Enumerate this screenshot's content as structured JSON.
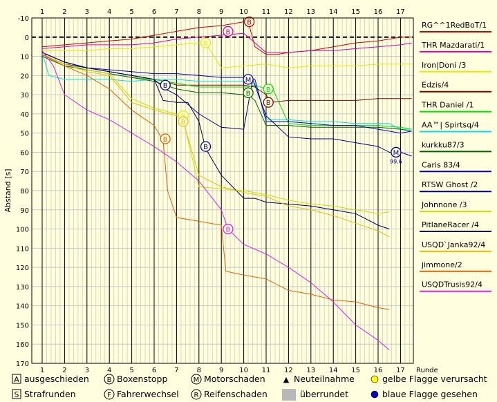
{
  "chart_data": {
    "type": "line",
    "ylabel": "Abstand [s]",
    "xlabel": "Runde",
    "x_ticks": [
      1,
      2,
      3,
      4,
      5,
      6,
      7,
      8,
      9,
      10,
      11,
      12,
      13,
      14,
      15,
      16,
      17
    ],
    "y_ticks": [
      -10,
      0,
      10,
      20,
      30,
      40,
      50,
      60,
      70,
      80,
      90,
      100,
      110,
      120,
      130,
      140,
      150,
      160,
      170
    ],
    "ylim": [
      -10,
      170
    ],
    "xlim": [
      1,
      18.2
    ],
    "grid": true,
    "series": [
      {
        "name": "RG^^1RedBoT/1",
        "color": "#d00000",
        "x": [
          1,
          2,
          3,
          4,
          5,
          6,
          7,
          8,
          9,
          10,
          10.2,
          10.5,
          11,
          11.5,
          12,
          13,
          14,
          15,
          16,
          16.5,
          17,
          17.5
        ],
        "y": [
          5,
          4,
          3,
          2,
          1,
          -1,
          -3,
          -5,
          -6,
          -8,
          -8,
          5,
          9,
          9,
          8,
          7,
          5,
          3,
          2,
          1,
          0,
          0
        ],
        "markers": [
          {
            "x": 10.25,
            "y": -8,
            "t": "B"
          }
        ]
      },
      {
        "name": "THR Mazdarati/1",
        "color": "#e000a0",
        "x": [
          1,
          2,
          3,
          4,
          5,
          6,
          7,
          8,
          9,
          10,
          10.5,
          11,
          12,
          13,
          14,
          15,
          16,
          17,
          17.5
        ],
        "y": [
          6,
          5,
          4,
          4,
          4,
          3,
          1,
          0,
          -1,
          -2,
          3,
          8,
          8,
          7,
          7,
          6,
          5,
          4,
          3
        ],
        "markers": [
          {
            "x": 9.3,
            "y": -3,
            "t": "B"
          }
        ]
      },
      {
        "name": "Iron|Doni /3",
        "color": "#e8e800",
        "x": [
          1,
          2,
          3,
          4,
          5,
          6,
          7,
          8,
          8.3,
          9,
          10,
          11,
          12,
          13,
          14,
          15,
          16,
          17,
          17.5
        ],
        "y": [
          7,
          7,
          7,
          6,
          6,
          5,
          4,
          3,
          3,
          16,
          15,
          14,
          16,
          15,
          15,
          15,
          14,
          14,
          14
        ],
        "markers": [
          {
            "x": 8.3,
            "y": 3,
            "t": "B"
          }
        ]
      },
      {
        "name": "Edzis/4",
        "color": "#800000",
        "x": [
          1,
          2,
          3,
          4,
          5,
          6,
          6.5,
          7,
          8,
          9,
          9.5,
          10,
          10.5,
          11,
          11.2,
          12,
          13,
          14,
          15,
          16,
          17,
          17.5
        ],
        "y": [
          8,
          13,
          16,
          18,
          20,
          22,
          23,
          25,
          25,
          25,
          25,
          25,
          26,
          30,
          34,
          33,
          33,
          33,
          33,
          32,
          32,
          32
        ],
        "markers": [
          {
            "x": 11.1,
            "y": 34,
            "t": "B"
          }
        ]
      },
      {
        "name": "THR Daniel /1",
        "color": "#00dd00",
        "x": [
          1,
          2,
          3,
          4,
          5,
          6,
          7,
          8,
          9,
          10,
          10.2,
          10.5,
          11,
          11.3,
          12,
          13,
          14,
          15,
          16,
          17,
          17.5
        ],
        "y": [
          9,
          14,
          17,
          19,
          21,
          22,
          24,
          26,
          26,
          26,
          26,
          25,
          27,
          27,
          45,
          46,
          46,
          46,
          46,
          47,
          48
        ],
        "markers": [
          {
            "x": 11.1,
            "y": 27,
            "t": "B"
          }
        ]
      },
      {
        "name": "AA™| Spirtsq/4",
        "color": "#00e0e0",
        "x": [
          1,
          1.3,
          2,
          3,
          4,
          5,
          6,
          7,
          8,
          9,
          10,
          10.5,
          11,
          12,
          13,
          14,
          15,
          16,
          16.5,
          17,
          17.5
        ],
        "y": [
          8,
          20,
          22,
          22,
          22,
          23,
          22,
          22,
          23,
          23,
          23,
          24,
          43,
          43,
          44,
          44,
          45,
          45,
          45,
          48,
          48
        ]
      },
      {
        "name": "kurkku87/3",
        "color": "#006000",
        "x": [
          1,
          2,
          3,
          4,
          5,
          6,
          7,
          8,
          9,
          10,
          10.2,
          10.5,
          11,
          12,
          13,
          14,
          15,
          16,
          17,
          17.5
        ],
        "y": [
          10,
          15,
          17,
          19,
          21,
          23,
          27,
          29,
          29,
          30,
          30,
          33,
          46,
          46,
          47,
          47,
          47,
          47,
          48,
          49
        ],
        "markers": [
          {
            "x": 10.2,
            "y": 29,
            "t": "B"
          }
        ]
      },
      {
        "name": "Caris 83/4",
        "color": "#0000c0",
        "x": [
          1,
          2,
          3,
          4,
          5,
          6,
          7,
          8,
          9,
          10,
          10.5,
          11,
          12,
          13,
          14,
          15,
          16,
          16.5,
          17,
          17.5
        ],
        "y": [
          9,
          14,
          16,
          17,
          18,
          19,
          19,
          20,
          21,
          21,
          22,
          44,
          44,
          45,
          46,
          46,
          48,
          49,
          50,
          49
        ],
        "markers": [
          {
            "x": 10.2,
            "y": 22,
            "t": "M"
          }
        ]
      },
      {
        "name": "RTSW Ghost /2",
        "color": "#000080",
        "x": [
          1,
          2,
          3,
          4,
          5,
          6,
          6.5,
          7,
          8,
          9,
          10,
          10.4,
          11,
          12,
          13,
          14,
          15,
          16,
          16.5,
          17,
          17.5
        ],
        "y": [
          8,
          13,
          16,
          18,
          20,
          22,
          27,
          30,
          40,
          47,
          48,
          22,
          41,
          52,
          53,
          53,
          55,
          57,
          60,
          60,
          62
        ],
        "markers": [
          {
            "x": 16.8,
            "y": 60,
            "t": "M"
          }
        ]
      },
      {
        "name": "Johnnone /3",
        "color": "#c8e000",
        "x": [
          1,
          2,
          3,
          4,
          5,
          6,
          7,
          7.3,
          8,
          9,
          10,
          11,
          12,
          13,
          14,
          15,
          16,
          16.5
        ],
        "y": [
          9,
          14,
          17,
          19,
          32,
          37,
          40,
          43,
          78,
          79,
          80,
          82,
          85,
          87,
          88,
          90,
          92,
          91
        ]
      },
      {
        "name": "PitlaneRacer /4",
        "color": "#000050",
        "x": [
          1,
          2,
          3,
          4,
          5,
          6,
          6.4,
          7,
          7.5,
          8,
          8.3,
          9,
          9.5,
          10,
          10.5,
          11,
          12,
          13,
          14,
          15,
          16,
          16.5
        ],
        "y": [
          8,
          13,
          16,
          18,
          20,
          22,
          33,
          34,
          34,
          44,
          58,
          72,
          78,
          84,
          84,
          86,
          87,
          88,
          90,
          92,
          98,
          100
        ]
      },
      {
        "name": "USQD`Janka92/4",
        "color": "#f0b800",
        "x": [
          1,
          2,
          3,
          4,
          5,
          6,
          7,
          7.3,
          8,
          9,
          10,
          11,
          12,
          13,
          14,
          15,
          16,
          16.5
        ],
        "y": [
          9,
          14,
          18,
          20,
          34,
          38,
          41,
          44,
          72,
          78,
          81,
          83,
          88,
          90,
          93,
          97,
          101,
          104
        ]
      },
      {
        "name": "jimmone/2",
        "color": "#e06000",
        "x": [
          1,
          2,
          3,
          4,
          5,
          6,
          6.4,
          6.6,
          7,
          8,
          9,
          9.2,
          10,
          11,
          12,
          13,
          14,
          15,
          16,
          16.5
        ],
        "y": [
          9,
          15,
          20,
          27,
          38,
          46,
          54,
          80,
          94,
          96,
          98,
          122,
          124,
          126,
          132,
          134,
          137,
          138,
          141,
          142
        ]
      },
      {
        "name": "USQDTrusis92/4",
        "color": "#e020e0",
        "x": [
          1,
          1.5,
          2,
          3,
          4,
          5,
          6,
          7,
          8,
          9,
          9.3,
          10,
          11,
          12,
          13,
          14,
          15,
          16,
          16.5
        ],
        "y": [
          7,
          15,
          30,
          38,
          43,
          50,
          57,
          65,
          75,
          90,
          100,
          108,
          113,
          120,
          128,
          138,
          150,
          158,
          163
        ],
        "markers": [
          {
            "x": 9.3,
            "y": 100,
            "t": "B"
          }
        ]
      }
    ],
    "extra_markers": [
      {
        "x": 6.5,
        "y": 53,
        "t": "B",
        "color": "#e06000"
      },
      {
        "x": 6.5,
        "y": 25,
        "t": "B",
        "color": "#000080"
      },
      {
        "x": 8.3,
        "y": 57,
        "t": "B",
        "color": "#000080"
      },
      {
        "x": 7.3,
        "y": 41,
        "t": "B",
        "color": "#e8e800"
      },
      {
        "x": 7.3,
        "y": 44,
        "t": "B",
        "color": "#f0b800"
      }
    ],
    "annotation": "99.6"
  },
  "legend_bottom": {
    "row1": [
      {
        "icon": "A",
        "label": "ausgeschieden"
      },
      {
        "icon": "B",
        "label": "Boxenstopp"
      },
      {
        "icon": "M",
        "label": "Motorschaden"
      },
      {
        "icon": "▲",
        "label": "Neuteilnahme"
      },
      {
        "icon": "yellow-dot",
        "label": "gelbe Flagge verursacht"
      }
    ],
    "row2": [
      {
        "icon": "S",
        "label": "Strafrunden"
      },
      {
        "icon": "F",
        "label": "Fahrerwechsel"
      },
      {
        "icon": "R",
        "label": "Reifenschaden"
      },
      {
        "icon": "grey-box",
        "label": "überrundet"
      },
      {
        "icon": "blue-dot",
        "label": "blaue Flagge gesehen"
      }
    ]
  }
}
